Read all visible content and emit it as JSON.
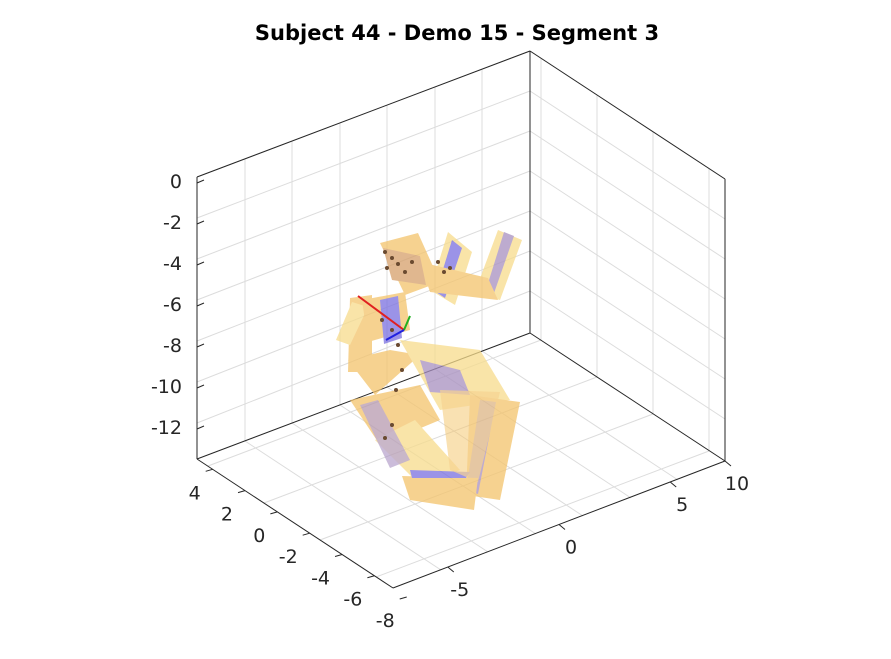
{
  "chart_data": {
    "type": "3d-surface",
    "title": "Subject 44 - Demo 15 - Segment 3",
    "xlabel": "",
    "ylabel": "",
    "zlabel": "",
    "x_ticks": [
      "-5",
      "0",
      "5",
      "10"
    ],
    "y_ticks": [
      "4",
      "2",
      "0",
      "-2",
      "-4",
      "-6",
      "-8"
    ],
    "z_ticks": [
      "0",
      "-2",
      "-4",
      "-6",
      "-8",
      "-10",
      "-12"
    ],
    "grid": true,
    "colors": {
      "segment_fill": "#f4c46c",
      "segment_light": "#f7dc8c",
      "segment_shadow": "#a890c0",
      "segment_blue": "#7a70e0",
      "markers": "#6a4a30",
      "frame_red": "#e02020",
      "frame_green": "#20b020",
      "frame_blue": "#2020e0"
    }
  }
}
